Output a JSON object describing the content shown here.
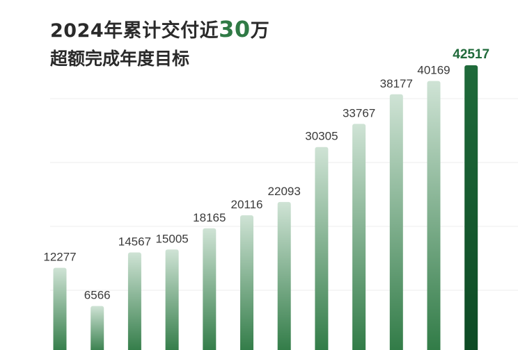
{
  "header": {
    "title_prefix": "2024年累计交付近",
    "title_highlight": "30",
    "title_suffix": "万",
    "subtitle": "超额完成年度目标"
  },
  "colors": {
    "bar_top": "#cfe3d5",
    "bar_bottom": "#2f7a45",
    "highlight_top": "#1f6a3a",
    "highlight_bottom": "#0d4a24",
    "label": "#3a3a3a",
    "highlight_label": "#1f6a3a",
    "grid": "#eeeeee"
  },
  "chart_data": {
    "type": "bar",
    "title": "2024年累计交付近30万",
    "subtitle": "超额完成年度目标",
    "xlabel": "",
    "ylabel": "",
    "grid": true,
    "values": [
      12277,
      6566,
      14567,
      15005,
      18165,
      20116,
      22093,
      30305,
      33767,
      38177,
      40169,
      42517
    ],
    "highlight_index": 11,
    "ylim": [
      0,
      45000
    ]
  }
}
